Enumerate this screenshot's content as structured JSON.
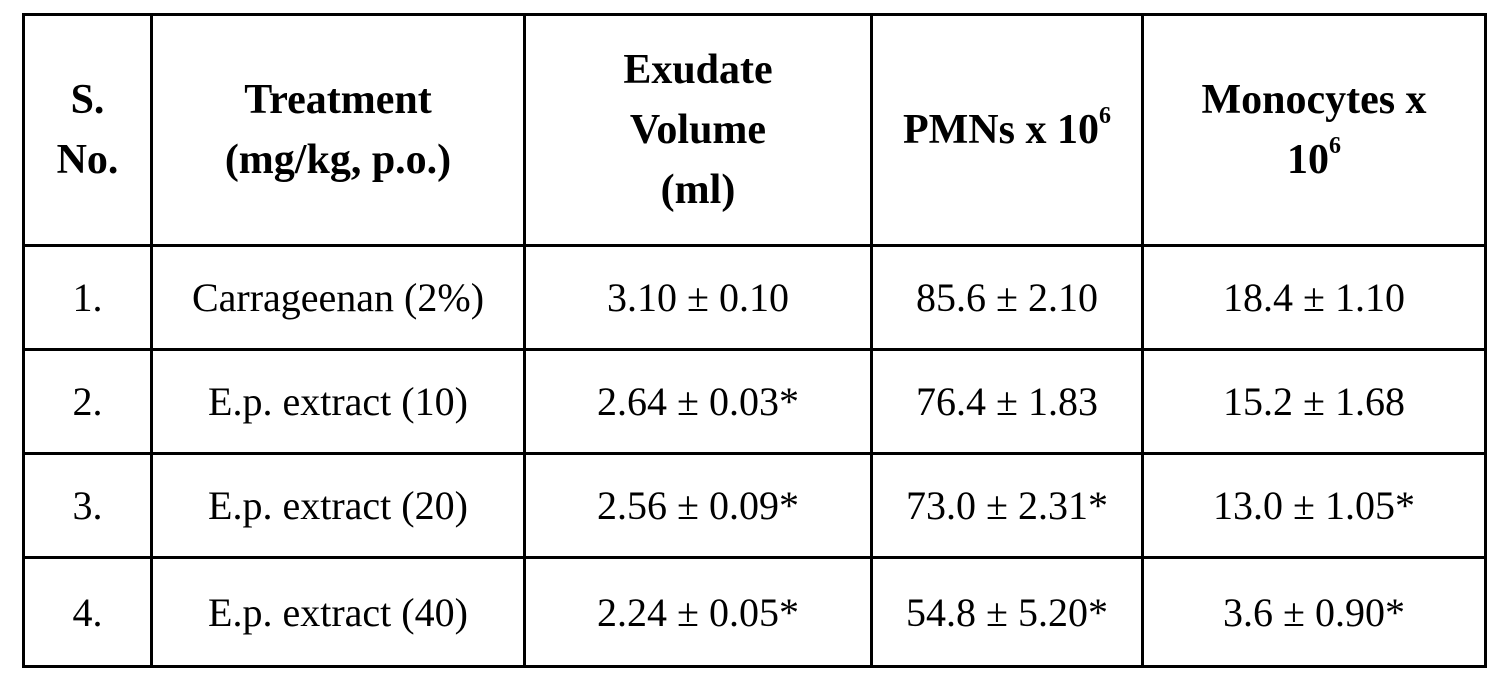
{
  "table": {
    "headers": {
      "sno": [
        "S.",
        "No."
      ],
      "treatment": [
        "Treatment",
        "(mg/kg, p.o.)"
      ],
      "exudate": [
        "Exudate",
        "Volume",
        "(ml)"
      ],
      "pmns": {
        "text": "PMNs x 10",
        "sup": "6"
      },
      "monocytes": {
        "line1": "Monocytes x",
        "line2": "10",
        "sup": "6"
      }
    },
    "rows": [
      [
        "1.",
        "Carrageenan (2%)",
        "3.10 ± 0.10",
        "85.6 ± 2.10",
        "18.4 ± 1.10"
      ],
      [
        "2.",
        "E.p. extract (10)",
        "2.64 ± 0.03*",
        "76.4 ± 1.83",
        "15.2 ± 1.68"
      ],
      [
        "3.",
        "E.p. extract (20)",
        "2.56 ± 0.09*",
        "73.0 ± 2.31*",
        "13.0 ± 1.05*"
      ],
      [
        "4.",
        "E.p. extract (40)",
        "2.24 ± 0.05*",
        "54.8 ± 5.20*",
        "3.6 ± 0.90*"
      ]
    ]
  }
}
